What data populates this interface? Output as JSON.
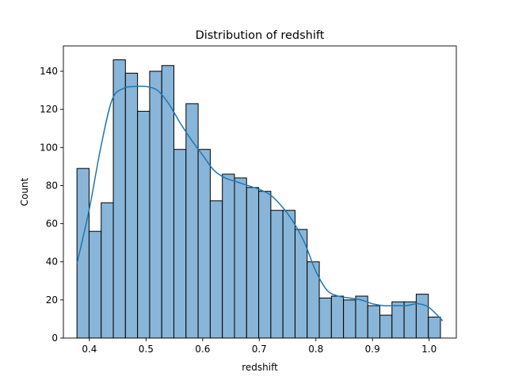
{
  "chart_data": {
    "type": "bar",
    "title": "Distribution of redshift",
    "xlabel": "redshift",
    "ylabel": "Count",
    "xlim": [
      0.354,
      1.048
    ],
    "ylim": [
      0,
      153.3
    ],
    "xticks": [
      0.4,
      0.5,
      0.6,
      0.7,
      0.8,
      0.9,
      1.0
    ],
    "yticks": [
      0,
      20,
      40,
      60,
      80,
      100,
      120,
      140
    ],
    "bins": {
      "start": 0.378,
      "width": 0.0214,
      "counts": [
        89,
        56,
        71,
        146,
        139,
        119,
        140,
        143,
        99,
        123,
        99,
        72,
        86,
        84,
        79,
        77,
        67,
        67,
        57,
        40,
        21,
        22,
        20,
        22,
        17,
        12,
        19,
        19,
        23,
        11
      ]
    },
    "kde": {
      "x": [
        0.378,
        0.4,
        0.42,
        0.44,
        0.46,
        0.48,
        0.5,
        0.52,
        0.54,
        0.56,
        0.58,
        0.6,
        0.62,
        0.64,
        0.66,
        0.68,
        0.7,
        0.72,
        0.74,
        0.76,
        0.78,
        0.8,
        0.82,
        0.84,
        0.86,
        0.88,
        0.9,
        0.92,
        0.94,
        0.96,
        0.98,
        1.0,
        1.024
      ],
      "y": [
        39,
        68,
        100,
        125,
        131,
        132,
        132,
        130,
        123,
        113,
        104,
        96,
        88,
        84,
        82,
        80,
        78,
        75,
        69,
        61,
        50,
        35,
        25,
        22,
        21,
        20,
        18,
        17,
        17,
        17,
        18,
        16,
        9
      ]
    },
    "bar_fill": "#89b5d8",
    "bar_edge": "#000000",
    "kde_color": "#1f77b4",
    "grid": false
  }
}
